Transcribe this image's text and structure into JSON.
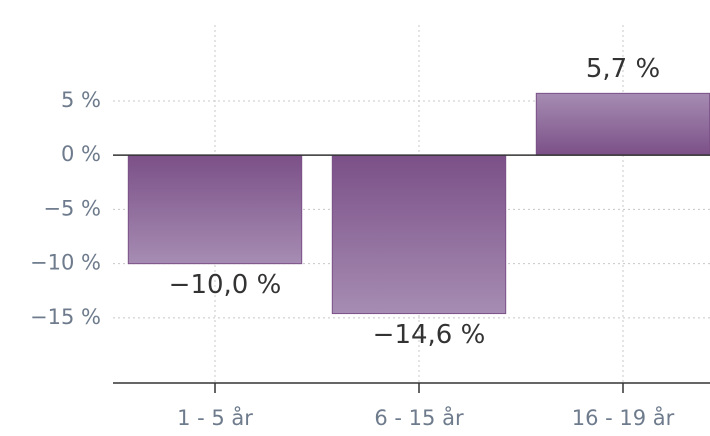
{
  "chart_data": {
    "type": "bar",
    "categories": [
      "1 - 5 år",
      "6 - 15 år",
      "16 - 19 år"
    ],
    "values": [
      -10.0,
      -14.6,
      5.7
    ],
    "value_labels": [
      "−10,0 %",
      "−14,6 %",
      "5,7 %"
    ],
    "color": "#7b5088",
    "ylim": [
      -21,
      12
    ],
    "yticks": [
      {
        "value": 5,
        "label": "5 %"
      },
      {
        "value": 0,
        "label": "0 %"
      },
      {
        "value": -5,
        "label": "−5 %"
      },
      {
        "value": -10,
        "label": "−10 %"
      },
      {
        "value": -15,
        "label": "−15 %"
      }
    ],
    "grid": true
  }
}
